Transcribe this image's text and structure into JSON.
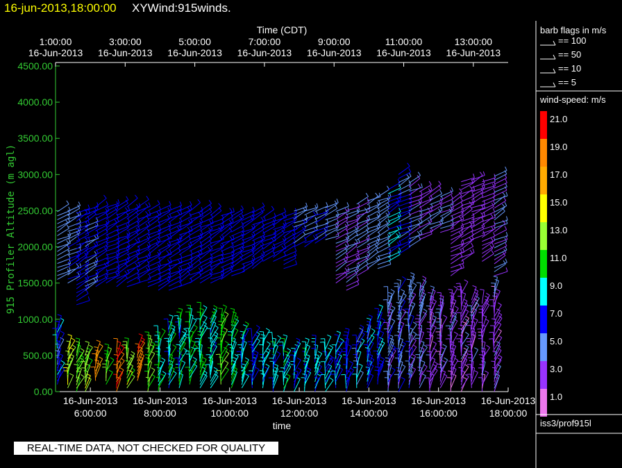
{
  "header": {
    "datetime": "16-jun-2013,18:00:00",
    "title": "XYWind:915winds."
  },
  "notice": "REAL-TIME DATA, NOT CHECKED FOR QUALITY",
  "colors": {
    "axis_left": "#33cc33",
    "axis_frame": "#ffffff",
    "header_datetime": "#ffff00"
  },
  "barb_legend": {
    "title": "barb flags in m/s",
    "entries": [
      {
        "label": "== 100"
      },
      {
        "label": "== 50"
      },
      {
        "label": "== 10"
      },
      {
        "label": "== 5"
      }
    ]
  },
  "colorbar": {
    "title": "wind-speed: m/s",
    "bins": [
      {
        "label": "21.0",
        "color": "#ff0000"
      },
      {
        "label": "19.0",
        "color": "#ff8800"
      },
      {
        "label": "17.0",
        "color": "#ffaa00"
      },
      {
        "label": "15.0",
        "color": "#ffff00"
      },
      {
        "label": "13.0",
        "color": "#99ff33"
      },
      {
        "label": "11.0",
        "color": "#00dd00"
      },
      {
        "label": "9.0",
        "color": "#00ffff"
      },
      {
        "label": "7.0",
        "color": "#0000ff"
      },
      {
        "label": "5.0",
        "color": "#6699ff"
      },
      {
        "label": "3.0",
        "color": "#9933ff"
      },
      {
        "label": "1.0",
        "color": "#ee77ee"
      }
    ]
  },
  "station": "iss3/prof915l",
  "chart_data": {
    "type": "wind-barb time-height",
    "top_axis_label": "Time (CDT)",
    "top_ticks": [
      {
        "time": "1:00:00",
        "date": "16-Jun-2013"
      },
      {
        "time": "3:00:00",
        "date": "16-Jun-2013"
      },
      {
        "time": "5:00:00",
        "date": "16-Jun-2013"
      },
      {
        "time": "7:00:00",
        "date": "16-Jun-2013"
      },
      {
        "time": "9:00:00",
        "date": "16-Jun-2013"
      },
      {
        "time": "11:00:00",
        "date": "16-Jun-2013"
      },
      {
        "time": "13:00:00",
        "date": "16-Jun-2013"
      }
    ],
    "bottom_axis_label": "time",
    "bottom_ticks": [
      {
        "date": "16-Jun-2013",
        "time": "6:00:00"
      },
      {
        "date": "16-Jun-2013",
        "time": "8:00:00"
      },
      {
        "date": "16-Jun-2013",
        "time": "10:00:00"
      },
      {
        "date": "16-Jun-2013",
        "time": "12:00:00"
      },
      {
        "date": "16-Jun-2013",
        "time": "14:00:00"
      },
      {
        "date": "16-Jun-2013",
        "time": "16:00:00"
      },
      {
        "date": "16-Jun-2013",
        "time": "18:00:00"
      }
    ],
    "x_range_hours": [
      5.0,
      18.0
    ],
    "ylabel": "915 Profiler Altitude (m agl)",
    "yticks": [
      "0.00",
      "500.00",
      "1000.00",
      "1500.00",
      "2000.00",
      "2500.00",
      "3000.00",
      "3500.00",
      "4000.00",
      "4500.00"
    ],
    "ylim": [
      0,
      4500
    ],
    "profiles": [
      {
        "t": 5.05,
        "lo": 100,
        "hi": 900,
        "lo_spd": 7,
        "gap": [
          1000,
          1500
        ],
        "hi_lo": 1550,
        "hi_top": 2500,
        "hi_spd": 5
      },
      {
        "t": 5.35,
        "lo": 50,
        "hi": 600,
        "lo_spd": 13,
        "gap": [
          700,
          1500
        ],
        "hi_lo": 1500,
        "hi_top": 2500,
        "hi_spd": 6
      },
      {
        "t": 5.6,
        "lo": 0,
        "hi": 550,
        "lo_spd": 12,
        "gap": [
          700,
          1500
        ],
        "hi_lo": 1200,
        "hi_top": 2500,
        "hi_spd": 7
      },
      {
        "t": 5.85,
        "lo": 0,
        "hi": 520,
        "lo_spd": 13,
        "gap": [
          700,
          1500
        ],
        "hi_lo": 1400,
        "hi_top": 2550,
        "hi_spd": 6
      },
      {
        "t": 6.15,
        "lo": 150,
        "hi": 520,
        "lo_spd": 18,
        "gap": [
          700,
          1500
        ],
        "hi_lo": 1450,
        "hi_top": 2600,
        "hi_spd": 7
      },
      {
        "t": 6.45,
        "lo": 100,
        "hi": 500,
        "lo_spd": 12,
        "gap": [
          700,
          1500
        ],
        "hi_lo": 1500,
        "hi_top": 2550,
        "hi_spd": 7
      },
      {
        "t": 6.75,
        "lo": 0,
        "hi": 550,
        "lo_spd": 20,
        "gap": [
          700,
          1500
        ],
        "hi_lo": 1450,
        "hi_top": 2600,
        "hi_spd": 7
      },
      {
        "t": 7.05,
        "lo": 50,
        "hi": 550,
        "lo_spd": 13,
        "gap": [
          700,
          1500
        ],
        "hi_lo": 1450,
        "hi_top": 2550,
        "hi_spd": 7
      },
      {
        "t": 7.35,
        "lo": 150,
        "hi": 600,
        "lo_spd": 20,
        "gap": [
          700,
          1500
        ],
        "hi_lo": 1500,
        "hi_top": 2550,
        "hi_spd": 7
      },
      {
        "t": 7.65,
        "lo": 0,
        "hi": 650,
        "lo_spd": 12,
        "gap": [
          800,
          1500
        ],
        "hi_lo": 1450,
        "hi_top": 2500,
        "hi_spd": 7
      },
      {
        "t": 7.95,
        "lo": 0,
        "hi": 750,
        "lo_spd": 10,
        "gap": [
          900,
          1500
        ],
        "hi_lo": 1400,
        "hi_top": 2500,
        "hi_spd": 7
      },
      {
        "t": 8.25,
        "lo": 50,
        "hi": 900,
        "lo_spd": 9,
        "gap": [
          1000,
          1500
        ],
        "hi_lo": 1400,
        "hi_top": 2550,
        "hi_spd": 7
      },
      {
        "t": 8.55,
        "lo": 50,
        "hi": 950,
        "lo_spd": 9,
        "gap": [
          1050,
          1500
        ],
        "hi_lo": 1450,
        "hi_top": 2500,
        "hi_spd": 7
      },
      {
        "t": 8.85,
        "lo": 100,
        "hi": 1000,
        "lo_spd": 10,
        "gap": [
          1100,
          1500
        ],
        "hi_lo": 1500,
        "hi_top": 2500,
        "hi_spd": 7
      },
      {
        "t": 9.15,
        "lo": 50,
        "hi": 1050,
        "lo_spd": 10,
        "gap": [
          1150,
          1600
        ],
        "hi_lo": 1500,
        "hi_top": 2500,
        "hi_spd": 7
      },
      {
        "t": 9.45,
        "lo": 50,
        "hi": 1000,
        "lo_spd": 9,
        "gap": [
          1100,
          1600
        ],
        "hi_lo": 1500,
        "hi_top": 2450,
        "hi_spd": 7
      },
      {
        "t": 9.75,
        "lo": 100,
        "hi": 1000,
        "lo_spd": 12,
        "gap": [
          1100,
          1600
        ],
        "hi_lo": 1550,
        "hi_top": 2450,
        "hi_spd": 7
      },
      {
        "t": 10.05,
        "lo": 50,
        "hi": 950,
        "lo_spd": 10,
        "gap": [
          1050,
          1650
        ],
        "hi_lo": 1600,
        "hi_top": 2450,
        "hi_spd": 7
      },
      {
        "t": 10.35,
        "lo": 50,
        "hi": 800,
        "lo_spd": 9,
        "gap": [
          900,
          1650
        ],
        "hi_lo": 1650,
        "hi_top": 2450,
        "hi_spd": 7
      },
      {
        "t": 10.65,
        "lo": 50,
        "hi": 750,
        "lo_spd": 8,
        "gap": [
          850,
          1700
        ],
        "hi_lo": 1700,
        "hi_top": 2500,
        "hi_spd": 7
      },
      {
        "t": 10.95,
        "lo": 50,
        "hi": 700,
        "lo_spd": 9,
        "gap": [
          800,
          1800
        ],
        "hi_lo": 1800,
        "hi_top": 2450,
        "hi_spd": 7
      },
      {
        "t": 11.25,
        "lo": 0,
        "hi": 650,
        "lo_spd": 9,
        "gap": [
          750,
          1800
        ],
        "hi_lo": 1800,
        "hi_top": 2450,
        "hi_spd": 7
      },
      {
        "t": 11.55,
        "lo": 0,
        "hi": 600,
        "lo_spd": 9,
        "gap": [
          700,
          1700
        ],
        "hi_lo": 1700,
        "hi_top": 2450,
        "hi_spd": 7
      },
      {
        "t": 11.85,
        "lo": 0,
        "hi": 550,
        "lo_spd": 8,
        "gap": [
          650,
          2000
        ],
        "hi_lo": 2000,
        "hi_top": 2500,
        "hi_spd": 6
      },
      {
        "t": 12.15,
        "lo": 0,
        "hi": 550,
        "lo_spd": 9,
        "gap": [
          650,
          2000
        ],
        "hi_lo": 2000,
        "hi_top": 2500,
        "hi_spd": 6
      },
      {
        "t": 12.45,
        "lo": 0,
        "hi": 600,
        "lo_spd": 8,
        "gap": [
          700,
          2000
        ],
        "hi_lo": 2050,
        "hi_top": 2500,
        "hi_spd": 6
      },
      {
        "t": 12.75,
        "lo": 0,
        "hi": 600,
        "lo_spd": 9,
        "gap": [
          700,
          2000
        ],
        "hi_lo": 2100,
        "hi_top": 2550,
        "hi_spd": 5
      },
      {
        "t": 13.05,
        "lo": 50,
        "hi": 650,
        "lo_spd": 8,
        "gap": [
          750,
          1500
        ],
        "hi_lo": 1500,
        "hi_top": 2500,
        "hi_spd": 4
      },
      {
        "t": 13.35,
        "lo": 0,
        "hi": 700,
        "lo_spd": 7,
        "gap": [
          800,
          1500
        ],
        "hi_lo": 1400,
        "hi_top": 2550,
        "hi_spd": 4
      },
      {
        "t": 13.65,
        "lo": 50,
        "hi": 750,
        "lo_spd": 7,
        "gap": [
          850,
          1500
        ],
        "hi_lo": 1600,
        "hi_top": 2600,
        "hi_spd": 4
      },
      {
        "t": 13.95,
        "lo": 50,
        "hi": 900,
        "lo_spd": 7,
        "gap": [
          1000,
          1500
        ],
        "hi_lo": 1700,
        "hi_top": 2650,
        "hi_spd": 5
      },
      {
        "t": 14.25,
        "lo": 100,
        "hi": 1000,
        "lo_spd": 7,
        "gap": [
          1100,
          1500
        ],
        "hi_lo": 1700,
        "hi_top": 2700,
        "hi_spd": 5
      },
      {
        "t": 14.55,
        "lo": 0,
        "hi": 1300,
        "lo_spd": 5,
        "gap": [
          1400,
          1500
        ],
        "hi_lo": 1800,
        "hi_top": 2800,
        "hi_spd": 8
      },
      {
        "t": 14.85,
        "lo": 0,
        "hi": 1400,
        "lo_spd": 5,
        "gap": [
          1500,
          1600
        ],
        "hi_lo": 1900,
        "hi_top": 3000,
        "hi_spd": 6
      },
      {
        "t": 15.15,
        "lo": 50,
        "hi": 1450,
        "lo_spd": 5,
        "gap": [
          1500,
          1700
        ],
        "hi_lo": 2000,
        "hi_top": 2900,
        "hi_spd": 4
      },
      {
        "t": 15.45,
        "lo": 50,
        "hi": 1400,
        "lo_spd": 4,
        "gap": [
          1500,
          1800
        ],
        "hi_lo": 2100,
        "hi_top": 2800,
        "hi_spd": 4
      },
      {
        "t": 15.75,
        "lo": 0,
        "hi": 1300,
        "lo_spd": 3,
        "gap": [
          1400,
          1900
        ],
        "hi_lo": 2200,
        "hi_top": 2750,
        "hi_spd": 4
      },
      {
        "t": 16.05,
        "lo": 50,
        "hi": 1200,
        "lo_spd": 3,
        "gap": [
          1300,
          2000
        ],
        "hi_lo": 2200,
        "hi_top": 2700,
        "hi_spd": 4
      },
      {
        "t": 16.35,
        "lo": 0,
        "hi": 1300,
        "lo_spd": 3,
        "gap": [
          1400,
          2000
        ],
        "hi_lo": 1600,
        "hi_top": 2650,
        "hi_spd": 3
      },
      {
        "t": 16.65,
        "lo": 0,
        "hi": 1350,
        "lo_spd": 3,
        "gap": [
          1450,
          2000
        ],
        "hi_lo": 1800,
        "hi_top": 2900,
        "hi_spd": 3
      },
      {
        "t": 16.95,
        "lo": 50,
        "hi": 1300,
        "lo_spd": 3,
        "gap": [
          1400,
          2000
        ],
        "hi_lo": 2100,
        "hi_top": 2950,
        "hi_spd": 3
      },
      {
        "t": 17.25,
        "lo": 0,
        "hi": 1250,
        "lo_spd": 3,
        "gap": [
          1350,
          2000
        ],
        "hi_lo": 1800,
        "hi_top": 2900,
        "hi_spd": 3
      },
      {
        "t": 17.6,
        "lo": 0,
        "hi": 1400,
        "lo_spd": 3,
        "gap": [
          1500,
          2000
        ],
        "hi_lo": 1600,
        "hi_top": 3000,
        "hi_spd": 4
      }
    ]
  }
}
